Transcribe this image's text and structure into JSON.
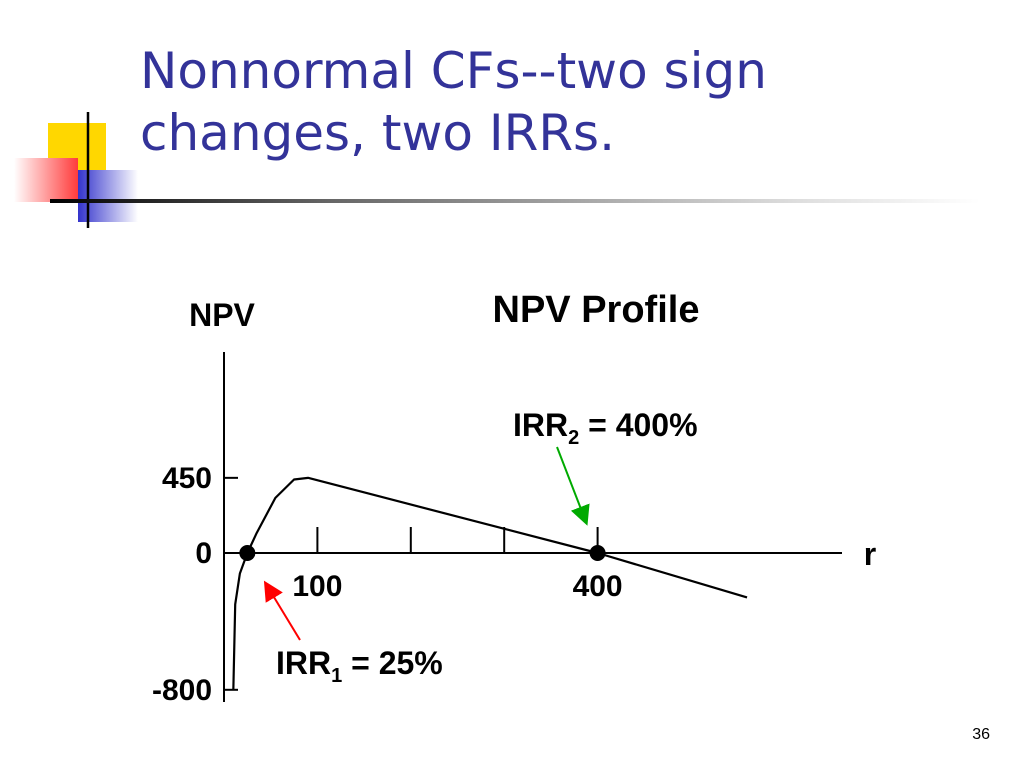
{
  "slide": {
    "title_line1": "Nonnormal CFs--two sign",
    "title_line2": "changes, two IRRs.",
    "page_number": "36",
    "title_color": "#333399",
    "decoration_colors": [
      "#ffd700",
      "#ff3b3b",
      "#3333cc"
    ]
  },
  "chart_data": {
    "type": "line",
    "title": "NPV Profile",
    "ylabel": "NPV",
    "xlabel": "r",
    "y_tick_labels": [
      {
        "label": "450",
        "value": 450
      },
      {
        "label": "0",
        "value": 0
      },
      {
        "label": "-800",
        "value": -800
      }
    ],
    "x_tick_labels": [
      {
        "label": "100",
        "value": 100
      },
      {
        "label": "400",
        "value": 400
      }
    ],
    "x_ticks": [
      100,
      200,
      300,
      400
    ],
    "series": [
      {
        "points": [
          [
            10,
            -800
          ],
          [
            12,
            -300
          ],
          [
            17,
            -120
          ],
          [
            25,
            0
          ],
          [
            35,
            120
          ],
          [
            55,
            330
          ],
          [
            75,
            440
          ],
          [
            90,
            450
          ],
          [
            400,
            0
          ],
          [
            560,
            -260
          ]
        ]
      }
    ],
    "irr_points": [
      25,
      400
    ],
    "annotations": [
      {
        "base": "IRR",
        "sub": "1",
        "rest": " = 25%",
        "target": 25,
        "color": "#ff0000"
      },
      {
        "base": "IRR",
        "sub": "2",
        "rest": " = 400%",
        "target": 400,
        "color": "#00aa00"
      }
    ]
  }
}
